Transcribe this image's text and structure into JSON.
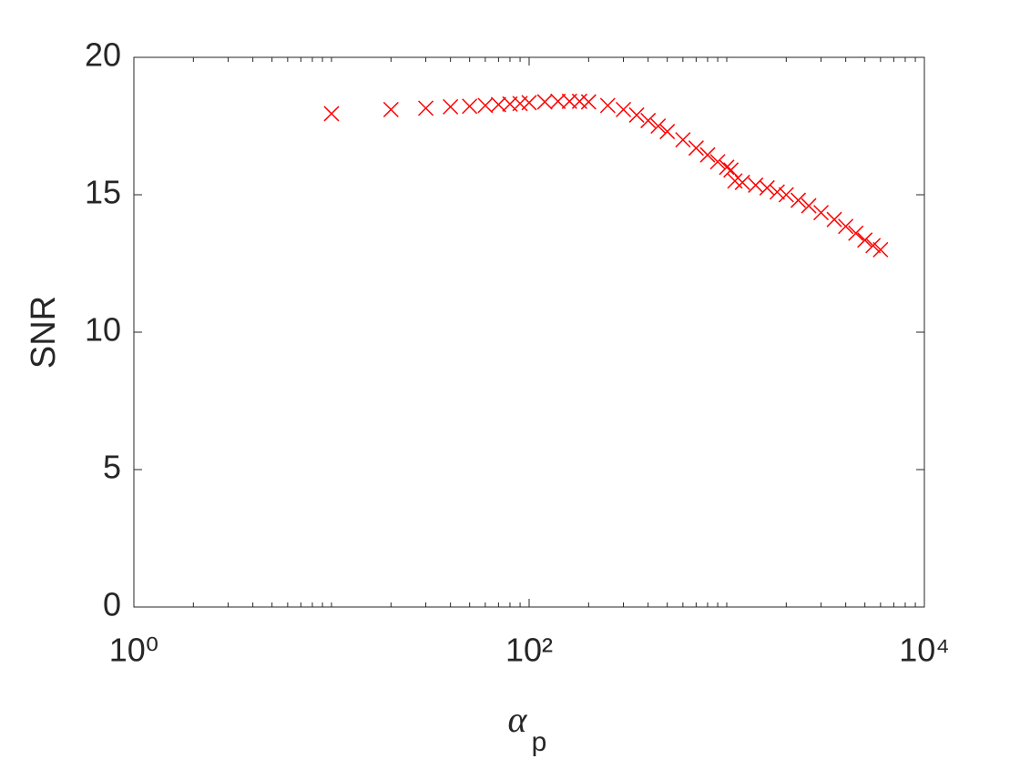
{
  "chart_data": {
    "type": "scatter",
    "xlabel": "α",
    "xlabel_subscript": "p",
    "ylabel": "SNR",
    "xscale": "log",
    "marker": "x",
    "grid": false,
    "xlim": [
      1,
      10000
    ],
    "xticks": [
      {
        "value": 1,
        "label": "10⁰"
      },
      {
        "value": 100,
        "label": "10²"
      },
      {
        "value": 10000,
        "label": "10⁴"
      }
    ],
    "xminorticks": [
      2,
      3,
      4,
      5,
      6,
      7,
      8,
      9,
      10,
      20,
      30,
      40,
      50,
      60,
      70,
      80,
      90,
      200,
      300,
      400,
      500,
      600,
      700,
      800,
      900,
      1000,
      2000,
      3000,
      4000,
      5000,
      6000,
      7000,
      8000,
      9000
    ],
    "ylim": [
      0,
      20
    ],
    "yticks": [
      0,
      5,
      10,
      15,
      20
    ],
    "series": [
      {
        "color": "#ff0000",
        "x": [
          10,
          20,
          30,
          40,
          50,
          60,
          70,
          80,
          90,
          100,
          120,
          140,
          160,
          180,
          200,
          250,
          300,
          350,
          400,
          450,
          500,
          600,
          700,
          800,
          900,
          1000,
          1050,
          1100,
          1200,
          1400,
          1600,
          1800,
          2000,
          2300,
          2600,
          3000,
          3500,
          4000,
          4500,
          5000,
          5500,
          6000
        ],
        "values": [
          17.95,
          18.1,
          18.15,
          18.2,
          18.22,
          18.25,
          18.28,
          18.3,
          18.32,
          18.35,
          18.38,
          18.4,
          18.4,
          18.4,
          18.38,
          18.25,
          18.1,
          17.9,
          17.7,
          17.5,
          17.3,
          17.0,
          16.7,
          16.45,
          16.2,
          16.0,
          15.9,
          15.5,
          15.45,
          15.35,
          15.25,
          15.1,
          15.0,
          14.8,
          14.6,
          14.35,
          14.1,
          13.85,
          13.6,
          13.35,
          13.15,
          13.0
        ]
      }
    ]
  }
}
